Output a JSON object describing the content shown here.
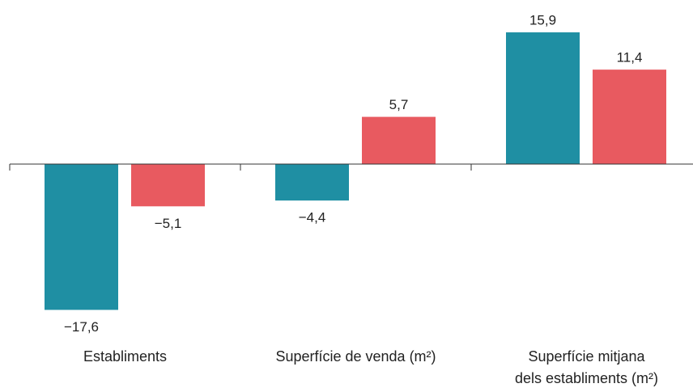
{
  "chart_data": {
    "type": "bar",
    "categories": [
      "Establiments",
      "Superfície de venda (m²)",
      "Superfície mitjana dels establiments (m²)"
    ],
    "series": [
      {
        "color": "#1f8fa3",
        "values": [
          -17.6,
          -4.4,
          15.9
        ],
        "value_labels": [
          "−17,6",
          "−4,4",
          "15,9"
        ]
      },
      {
        "color": "#e85a60",
        "values": [
          -5.1,
          5.7,
          11.4
        ],
        "value_labels": [
          "−5,1",
          "5,7",
          "11,4"
        ]
      }
    ],
    "ylim": [
      -20,
      20
    ]
  }
}
